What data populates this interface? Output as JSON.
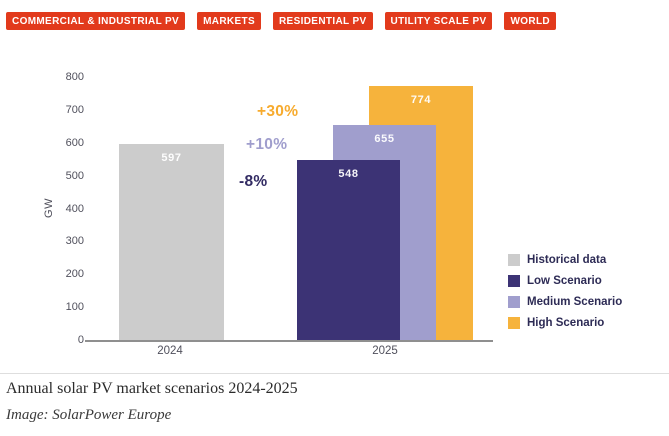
{
  "tags": [
    "COMMERCIAL & INDUSTRIAL PV",
    "MARKETS",
    "RESIDENTIAL PV",
    "UTILITY SCALE PV",
    "WORLD"
  ],
  "colors": {
    "tag_background": "#e23a1c",
    "historical": "#cccccc",
    "low": "#3c3375",
    "medium": "#a09ecd",
    "high": "#f6b33c",
    "axis_line": "#8f8f8f"
  },
  "chart_data": {
    "type": "bar",
    "title": "Annual solar PV market scenarios 2024-2025",
    "xlabel": "",
    "ylabel": "GW",
    "ylim": [
      0,
      800
    ],
    "ytick_step": 100,
    "grid": false,
    "legend_position": "right",
    "categories": [
      "2024",
      "2025"
    ],
    "series": [
      {
        "name": "Historical data",
        "category": "2024",
        "value": 597,
        "color": "#cccccc"
      },
      {
        "name": "Low Scenario",
        "category": "2025",
        "value": 548,
        "color": "#3c3375",
        "change": "-8%"
      },
      {
        "name": "Medium Scenario",
        "category": "2025",
        "value": 655,
        "color": "#a09ecd",
        "change": "+10%"
      },
      {
        "name": "High Scenario",
        "category": "2025",
        "value": 774,
        "color": "#f6b33c",
        "change": "+30%"
      }
    ],
    "annotations": [
      {
        "text": "-8%",
        "color": "#322b63"
      },
      {
        "text": "+10%",
        "color": "#a09ecd"
      },
      {
        "text": "+30%",
        "color": "#f7ab2e"
      }
    ],
    "legend": [
      {
        "label": "Historical data",
        "color": "#cccccc"
      },
      {
        "label": "Low Scenario",
        "color": "#3c3375"
      },
      {
        "label": "Medium Scenario",
        "color": "#a09ecd"
      },
      {
        "label": "High Scenario",
        "color": "#f6b33c"
      }
    ]
  },
  "caption": {
    "title": "Annual solar PV market scenarios 2024-2025",
    "credit": "Image: SolarPower Europe"
  }
}
